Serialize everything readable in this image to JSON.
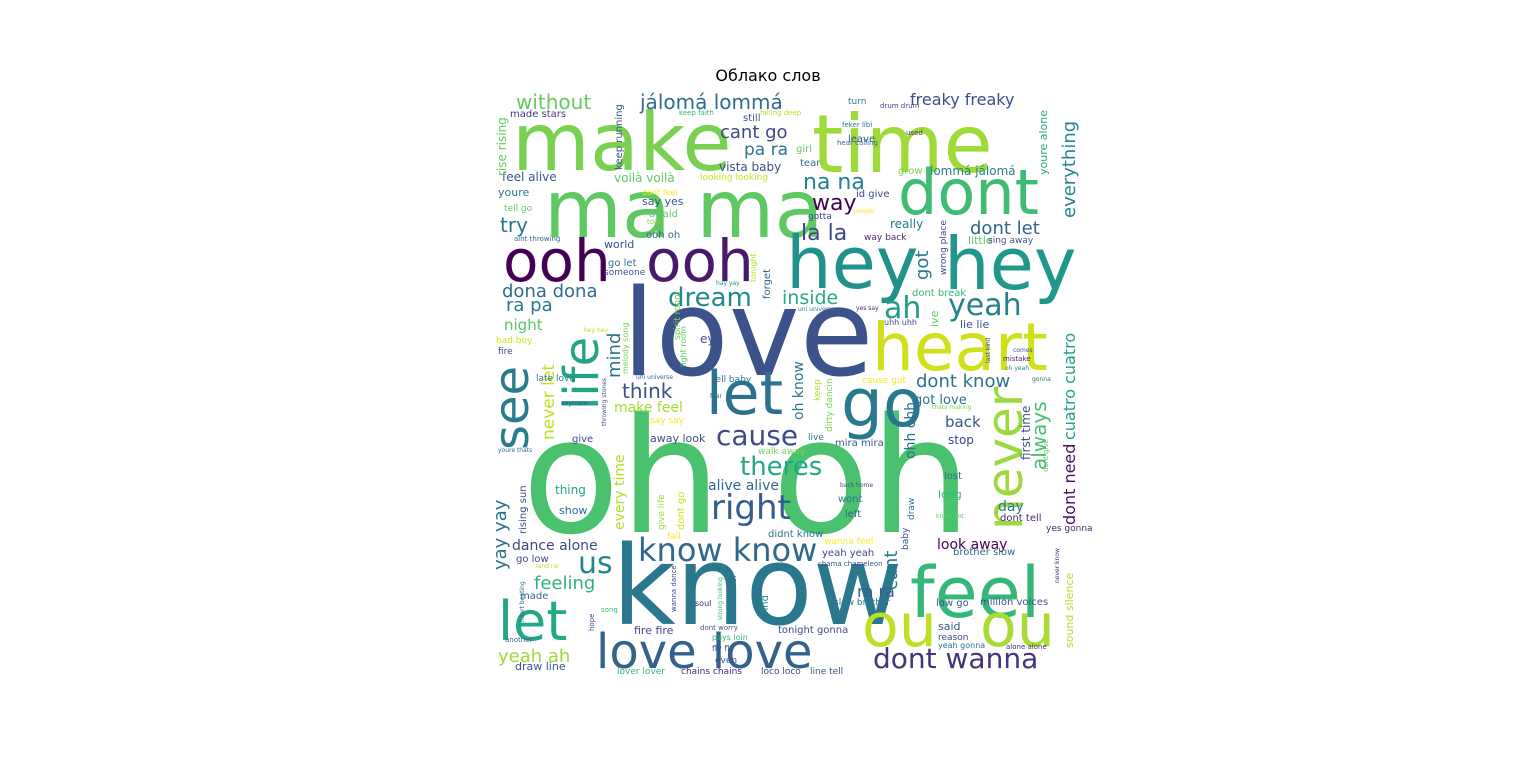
{
  "chart_data": {
    "type": "wordcloud",
    "title": "Облако слов",
    "background": "#ffffff",
    "palette": "viridis",
    "words": [
      {
        "text": "oh oh",
        "color": "#4ac16d"
      },
      {
        "text": "know",
        "color": "#2a788e"
      },
      {
        "text": "love",
        "color": "#3b528b"
      },
      {
        "text": "make",
        "color": "#7ad151"
      },
      {
        "text": "time",
        "color": "#a0da39"
      },
      {
        "text": "ma ma",
        "color": "#5ec962"
      },
      {
        "text": "hey",
        "color": "#21918c"
      },
      {
        "text": "hey",
        "color": "#1f988b"
      },
      {
        "text": "ooh",
        "color": "#440154"
      },
      {
        "text": "ooh",
        "color": "#481a6c"
      },
      {
        "text": "heart",
        "color": "#d0e11c"
      },
      {
        "text": "dont",
        "color": "#3fbc73"
      },
      {
        "text": "go",
        "color": "#2a788e"
      },
      {
        "text": "feel",
        "color": "#35b779"
      },
      {
        "text": "ou",
        "color": "#bddf26"
      },
      {
        "text": "ou",
        "color": "#a8db34"
      },
      {
        "text": "let",
        "color": "#2c728e"
      },
      {
        "text": "let",
        "color": "#22a884"
      },
      {
        "text": "life",
        "color": "#21a585"
      },
      {
        "text": "see",
        "color": "#287c8e"
      },
      {
        "text": "never",
        "color": "#9bd93c"
      },
      {
        "text": "love love",
        "color": "#33638d"
      },
      {
        "text": "know know",
        "color": "#31688e"
      },
      {
        "text": "dont wanna",
        "color": "#46337e"
      },
      {
        "text": "yeah",
        "color": "#26828e"
      },
      {
        "text": "ah",
        "color": "#1f9e89"
      },
      {
        "text": "dream",
        "color": "#23898e"
      },
      {
        "text": "us",
        "color": "#24878e"
      },
      {
        "text": "right",
        "color": "#365c8d"
      },
      {
        "text": "cause",
        "color": "#3e4a89"
      },
      {
        "text": "theres",
        "color": "#22a884"
      },
      {
        "text": "la la",
        "color": "#3f4788"
      },
      {
        "text": "na na",
        "color": "#277f8e"
      },
      {
        "text": "jálomá lommá",
        "color": "#2e6e8e"
      },
      {
        "text": "without",
        "color": "#65cb5e"
      },
      {
        "text": "freaky freaky",
        "color": "#3e4c8a"
      },
      {
        "text": "cant go",
        "color": "#404688"
      },
      {
        "text": "pa ra",
        "color": "#2c738e"
      },
      {
        "text": "way",
        "color": "#440154"
      },
      {
        "text": "try",
        "color": "#2a768e"
      },
      {
        "text": "dona dona",
        "color": "#2f6c8e"
      },
      {
        "text": "ra pa",
        "color": "#29798e"
      },
      {
        "text": "inside",
        "color": "#25ab82"
      },
      {
        "text": "got",
        "color": "#2a788e"
      },
      {
        "text": "dont let",
        "color": "#33628d"
      },
      {
        "text": "everything",
        "color": "#25848e"
      },
      {
        "text": "always",
        "color": "#4ac16d"
      },
      {
        "text": "dont know",
        "color": "#2c728e"
      },
      {
        "text": "dont need",
        "color": "#471063"
      },
      {
        "text": "cuatro cuatro",
        "color": "#1fa088"
      },
      {
        "text": "think",
        "color": "#3b518b"
      },
      {
        "text": "mind",
        "color": "#2e6f8e"
      },
      {
        "text": "never let",
        "color": "#c2df23"
      },
      {
        "text": "make feel",
        "color": "#a5db36"
      },
      {
        "text": "night",
        "color": "#56c667"
      },
      {
        "text": "yay yay",
        "color": "#2d718e"
      },
      {
        "text": "dance alone",
        "color": "#3f4788"
      },
      {
        "text": "feeling",
        "color": "#2fb47c"
      },
      {
        "text": "yeah ah",
        "color": "#a0da39"
      },
      {
        "text": "every time",
        "color": "#b5de2b"
      },
      {
        "text": "alive alive",
        "color": "#31688e"
      },
      {
        "text": "cant",
        "color": "#29798e"
      },
      {
        "text": "ra ra",
        "color": "#365d8d"
      },
      {
        "text": "look away",
        "color": "#440154"
      },
      {
        "text": "day",
        "color": "#287d8e"
      },
      {
        "text": "back",
        "color": "#3b528b"
      },
      {
        "text": "got love",
        "color": "#2d708e"
      },
      {
        "text": "ohh ohh",
        "color": "#2d708e"
      },
      {
        "text": "oh know",
        "color": "#2a788e"
      },
      {
        "text": "stop",
        "color": "#404688"
      },
      {
        "text": "first time",
        "color": "#3b528b"
      },
      {
        "text": "feel alive",
        "color": "#38598c"
      },
      {
        "text": "voilà voilà",
        "color": "#5ec962"
      },
      {
        "text": "vista baby",
        "color": "#3d4e8a"
      },
      {
        "text": "lommá jálomá",
        "color": "#277f8e"
      },
      {
        "text": "rise rising",
        "color": "#63cb5f"
      },
      {
        "text": "keep running",
        "color": "#39568c"
      },
      {
        "text": "made stars",
        "color": "#453781"
      },
      {
        "text": "keep faith",
        "color": "#35b779"
      },
      {
        "text": "falling deep",
        "color": "#b8de29"
      },
      {
        "text": "still",
        "color": "#3b528b"
      },
      {
        "text": "turn",
        "color": "#2a788e"
      },
      {
        "text": "drum drum",
        "color": "#3e4989"
      },
      {
        "text": "feker libi",
        "color": "#2a788e"
      },
      {
        "text": "hear calling",
        "color": "#2c728e"
      },
      {
        "text": "leave",
        "color": "#3b528b"
      },
      {
        "text": "used",
        "color": "#472d7b"
      },
      {
        "text": "youre alone",
        "color": "#22a884"
      },
      {
        "text": "girl",
        "color": "#5ec962"
      },
      {
        "text": "tear",
        "color": "#31688e"
      },
      {
        "text": "grow",
        "color": "#7ad151"
      },
      {
        "text": "looking looking",
        "color": "#d0e11c"
      },
      {
        "text": "dont feel",
        "color": "#fde725"
      },
      {
        "text": "say yes",
        "color": "#39568c"
      },
      {
        "text": "id give",
        "color": "#3e4989"
      },
      {
        "text": "youre",
        "color": "#2c728e"
      },
      {
        "text": "tell go",
        "color": "#5ec962"
      },
      {
        "text": "afraid",
        "color": "#5ec962"
      },
      {
        "text": "told",
        "color": "#7ad151"
      },
      {
        "text": "gotta",
        "color": "#3e4989"
      },
      {
        "text": "people",
        "color": "#fde725"
      },
      {
        "text": "really",
        "color": "#2a788e"
      },
      {
        "text": "world",
        "color": "#3b528b"
      },
      {
        "text": "ooh oh",
        "color": "#31688e"
      },
      {
        "text": "go let",
        "color": "#2c728e"
      },
      {
        "text": "someone",
        "color": "#3b528b"
      },
      {
        "text": "way back",
        "color": "#482878"
      },
      {
        "text": "wrong place",
        "color": "#3e4989"
      },
      {
        "text": "little",
        "color": "#5ec962"
      },
      {
        "text": "sing away",
        "color": "#3b528b"
      },
      {
        "text": "aint throwing",
        "color": "#31688e"
      },
      {
        "text": "tonight",
        "color": "#b5de2b"
      },
      {
        "text": "hay yay",
        "color": "#21918c"
      },
      {
        "text": "dont break",
        "color": "#35b779"
      },
      {
        "text": "ive",
        "color": "#5ec962"
      },
      {
        "text": "uhh uhh",
        "color": "#3e4989"
      },
      {
        "text": "uni universe",
        "color": "#2a788e"
      },
      {
        "text": "yes say",
        "color": "#482878"
      },
      {
        "text": "lie lie",
        "color": "#3b528b"
      },
      {
        "text": "forget",
        "color": "#31688e"
      },
      {
        "text": "spirit room",
        "color": "#7ad151"
      },
      {
        "text": "light room",
        "color": "#5ec962"
      },
      {
        "text": "melody song",
        "color": "#7ad151"
      },
      {
        "text": "hey hey",
        "color": "#b5de2b"
      },
      {
        "text": "bad boy",
        "color": "#d0e11c"
      },
      {
        "text": "fire",
        "color": "#3e4989"
      },
      {
        "text": "eye",
        "color": "#3b528b"
      },
      {
        "text": "late love",
        "color": "#2a788e"
      },
      {
        "text": "tell baby",
        "color": "#2c728e"
      },
      {
        "text": "uni universe",
        "color": "#31688e"
      },
      {
        "text": "keep",
        "color": "#b5de2b"
      },
      {
        "text": "dirty dancin",
        "color": "#7ad151"
      },
      {
        "text": "cause got",
        "color": "#fde725"
      },
      {
        "text": "comes",
        "color": "#3e4989"
      },
      {
        "text": "mistake",
        "color": "#482878"
      },
      {
        "text": "last kind",
        "color": "#3e4989"
      },
      {
        "text": "oh yeah",
        "color": "#21918c"
      },
      {
        "text": "gonna",
        "color": "#2c728e"
      },
      {
        "text": "fear",
        "color": "#2a788e"
      },
      {
        "text": "throwing stones",
        "color": "#3b528b"
      },
      {
        "text": "anymore",
        "color": "#3b528b"
      },
      {
        "text": "say say",
        "color": "#fde725"
      },
      {
        "text": "thats making",
        "color": "#7ad151"
      },
      {
        "text": "give",
        "color": "#3e4989"
      },
      {
        "text": "away look",
        "color": "#3b528b"
      },
      {
        "text": "live",
        "color": "#2a788e"
      },
      {
        "text": "mira mira",
        "color": "#39568c"
      },
      {
        "text": "walk away",
        "color": "#7ad151"
      },
      {
        "text": "youre thats",
        "color": "#31688e"
      },
      {
        "text": "rising sun",
        "color": "#3e4989"
      },
      {
        "text": "lost",
        "color": "#2c728e"
      },
      {
        "text": "yes gonna",
        "color": "#482878"
      },
      {
        "text": "dont give",
        "color": "#5ec962"
      },
      {
        "text": "thing",
        "color": "#21a585"
      },
      {
        "text": "show",
        "color": "#31688e"
      },
      {
        "text": "give life",
        "color": "#a0da39"
      },
      {
        "text": "dont go",
        "color": "#d0e11c"
      },
      {
        "text": "back home",
        "color": "#3b528b"
      },
      {
        "text": "wont",
        "color": "#2a788e"
      },
      {
        "text": "left",
        "color": "#31688e"
      },
      {
        "text": "long",
        "color": "#35b779"
      },
      {
        "text": "draw",
        "color": "#2c728e"
      },
      {
        "text": "know got",
        "color": "#5ec962"
      },
      {
        "text": "dont tell",
        "color": "#482878"
      },
      {
        "text": "didnt know",
        "color": "#2a788e"
      },
      {
        "text": "fall",
        "color": "#fde725"
      },
      {
        "text": "baby",
        "color": "#3b528b"
      },
      {
        "text": "wanna feel",
        "color": "#fde725"
      },
      {
        "text": "brother slow",
        "color": "#31688e"
      },
      {
        "text": "go low",
        "color": "#3e4989"
      },
      {
        "text": "land rar",
        "color": "#b5de2b"
      },
      {
        "text": "yeah yeah",
        "color": "#3e4989"
      },
      {
        "text": "chama chameleon",
        "color": "#3b528b"
      },
      {
        "text": "made",
        "color": "#31688e"
      },
      {
        "text": "loin dici",
        "color": "#2c728e"
      },
      {
        "text": "wanna dance",
        "color": "#3e4989"
      },
      {
        "text": "strong looking",
        "color": "#35b779"
      },
      {
        "text": "soul",
        "color": "#482878"
      },
      {
        "text": "find",
        "color": "#21918c"
      },
      {
        "text": "slow brother",
        "color": "#2c728e"
      },
      {
        "text": "low go",
        "color": "#39568c"
      },
      {
        "text": "million voices",
        "color": "#3b528b"
      },
      {
        "text": "sound silence",
        "color": "#b5de2b"
      },
      {
        "text": "never know",
        "color": "#482878"
      },
      {
        "text": "heart beating",
        "color": "#31688e"
      },
      {
        "text": "song",
        "color": "#35b779"
      },
      {
        "text": "hope",
        "color": "#3e4989"
      },
      {
        "text": "another",
        "color": "#31688e"
      },
      {
        "text": "fire fire",
        "color": "#3e4989"
      },
      {
        "text": "dont worry",
        "color": "#3b528b"
      },
      {
        "text": "pays loin",
        "color": "#35b779"
      },
      {
        "text": "fly fly",
        "color": "#3b528b"
      },
      {
        "text": "even",
        "color": "#3e4989"
      },
      {
        "text": "tonight gonna",
        "color": "#3e4989"
      },
      {
        "text": "said",
        "color": "#3b528b"
      },
      {
        "text": "reason",
        "color": "#3e4989"
      },
      {
        "text": "yeah gonna",
        "color": "#2c728e"
      },
      {
        "text": "alone alone",
        "color": "#482878"
      },
      {
        "text": "draw line",
        "color": "#3b528b"
      },
      {
        "text": "lover lover",
        "color": "#35b779"
      },
      {
        "text": "chains chains",
        "color": "#482878"
      },
      {
        "text": "loco loco",
        "color": "#3e4989"
      },
      {
        "text": "line tell",
        "color": "#3b528b"
      }
    ]
  }
}
